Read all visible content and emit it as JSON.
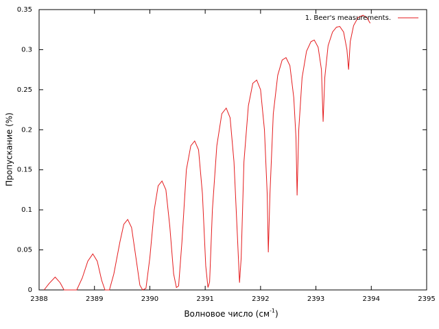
{
  "chart_data": {
    "type": "line",
    "xlabel": "Волновое число (см",
    "xlabel_sup": "-1",
    "xlabel_end": ")",
    "ylabel": "Пропускание (%)",
    "xlim": [
      2388,
      2395
    ],
    "ylim": [
      0,
      0.35
    ],
    "xticks": [
      2388,
      2389,
      2390,
      2391,
      2392,
      2393,
      2394,
      2395
    ],
    "yticks": [
      0,
      0.05,
      0.1,
      0.15,
      0.2,
      0.25,
      0.3,
      0.35
    ],
    "grid": false,
    "legend": "top-right",
    "series": [
      {
        "name": "1. Beer's measurements.",
        "color": "#e41a1c",
        "x": [
          2388.09,
          2388.18,
          2388.29,
          2388.38,
          2388.45,
          2388.68,
          2388.78,
          2388.88,
          2388.97,
          2389.05,
          2389.13,
          2389.19,
          2389.27,
          2389.35,
          2389.46,
          2389.53,
          2389.6,
          2389.67,
          2389.75,
          2389.82,
          2389.87,
          2389.93,
          2390.0,
          2390.08,
          2390.15,
          2390.22,
          2390.29,
          2390.36,
          2390.43,
          2390.48,
          2390.52,
          2390.58,
          2390.66,
          2390.74,
          2390.81,
          2390.88,
          2390.95,
          2391.01,
          2391.05,
          2391.08,
          2391.13,
          2391.21,
          2391.3,
          2391.38,
          2391.45,
          2391.52,
          2391.58,
          2391.62,
          2391.65,
          2391.7,
          2391.78,
          2391.86,
          2391.93,
          2392.0,
          2392.07,
          2392.12,
          2392.14,
          2392.17,
          2392.23,
          2392.31,
          2392.39,
          2392.46,
          2392.53,
          2392.6,
          2392.64,
          2392.66,
          2392.69,
          2392.75,
          2392.83,
          2392.91,
          2392.97,
          2393.04,
          2393.1,
          2393.13,
          2393.16,
          2393.22,
          2393.3,
          2393.37,
          2393.43,
          2393.5,
          2393.56,
          2393.59,
          2393.62,
          2393.68,
          2393.76,
          2393.85,
          2393.92,
          2393.98
        ],
        "values": [
          0,
          0.008,
          0.016,
          0.009,
          0,
          0,
          0.015,
          0.036,
          0.045,
          0.036,
          0.012,
          0,
          0,
          0.02,
          0.06,
          0.082,
          0.088,
          0.078,
          0.04,
          0.006,
          0,
          0.002,
          0.04,
          0.1,
          0.13,
          0.136,
          0.125,
          0.08,
          0.02,
          0.003,
          0.005,
          0.06,
          0.15,
          0.18,
          0.186,
          0.175,
          0.12,
          0.03,
          0.003,
          0.01,
          0.1,
          0.18,
          0.22,
          0.227,
          0.215,
          0.16,
          0.07,
          0.009,
          0.04,
          0.16,
          0.23,
          0.258,
          0.262,
          0.25,
          0.2,
          0.12,
          0.047,
          0.12,
          0.22,
          0.268,
          0.287,
          0.29,
          0.28,
          0.24,
          0.19,
          0.118,
          0.2,
          0.265,
          0.298,
          0.31,
          0.312,
          0.303,
          0.275,
          0.21,
          0.265,
          0.305,
          0.322,
          0.328,
          0.329,
          0.322,
          0.3,
          0.275,
          0.31,
          0.33,
          0.34,
          0.343,
          0.34,
          0.333
        ]
      }
    ]
  }
}
